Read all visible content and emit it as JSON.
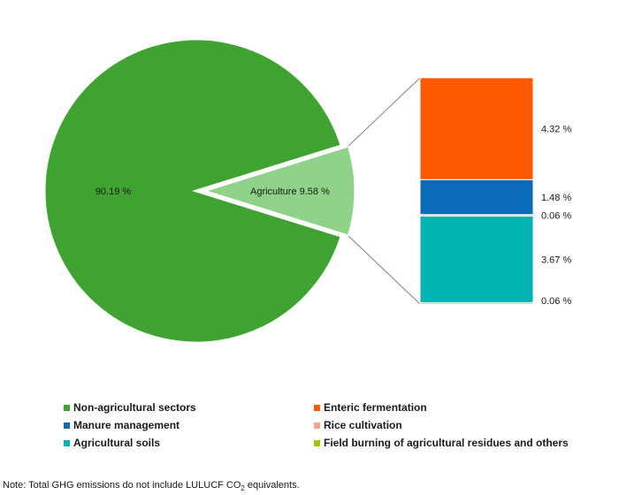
{
  "chart_data": {
    "type": "pie",
    "slices": [
      {
        "label": "",
        "value": 90.19,
        "display": "90.19 %",
        "color": "#3ea331"
      },
      {
        "label": "Agriculture",
        "value": 9.58,
        "display": "9.58 %",
        "color": "#8fd28a"
      }
    ],
    "breakdown": {
      "parent": "Agriculture",
      "type": "stacked-bar",
      "segments": [
        {
          "name": "Enteric fermentation",
          "value": 4.32,
          "display": "4.32 %",
          "color": "#ff5a00"
        },
        {
          "name": "Manure management",
          "value": 1.48,
          "display": "1.48 %",
          "color": "#0a6bbb"
        },
        {
          "name": "Rice cultivation",
          "value": 0.06,
          "display": "0.06 %",
          "color": "#f7a38c"
        },
        {
          "name": "Agricultural soils",
          "value": 3.67,
          "display": "3.67 %",
          "color": "#00b4b4"
        },
        {
          "name": "Field burning of agricultural residues and others",
          "value": 0.06,
          "display": "0.06 %",
          "color": "#a9c100"
        }
      ]
    },
    "legend": [
      {
        "label": "Non-agricultural sectors",
        "color": "#3ea331"
      },
      {
        "label": "Enteric fermentation",
        "color": "#ff5a00"
      },
      {
        "label": "Manure management",
        "color": "#0a6bbb"
      },
      {
        "label": "Rice cultivation",
        "color": "#f7a38c"
      },
      {
        "label": "Agricultural soils",
        "color": "#00b4b4"
      },
      {
        "label": "Field burning of agricultural residues and others",
        "color": "#a9c100"
      }
    ],
    "legend_position": "bottom"
  },
  "note": {
    "prefix": "Note: Total GHG emissions do not include LULUCF CO",
    "subscript": "2",
    "suffix": " equivalents."
  }
}
